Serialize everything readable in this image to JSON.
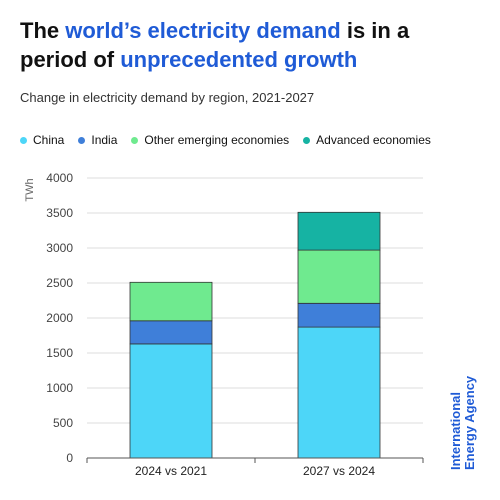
{
  "title": {
    "part1": "The ",
    "highlight1": "world’s electricity demand",
    "part2": " is in a period of ",
    "highlight2": "unprecedented growth"
  },
  "subtitle": "Change in electricity demand by region, 2021-2027",
  "brand": {
    "line1": "International",
    "line2": "Energy Agency"
  },
  "chart_data": {
    "type": "bar",
    "stacked": true,
    "categories": [
      "2024 vs 2021",
      "2027 vs 2024"
    ],
    "ylabel": "TWh",
    "ylim": [
      0,
      4000
    ],
    "yticks": [
      0,
      500,
      1000,
      1500,
      2000,
      2500,
      3000,
      3500,
      4000
    ],
    "grid": true,
    "legend_position": "top",
    "series": [
      {
        "name": "China",
        "color": "#4dd6f8",
        "values": [
          1630,
          1870
        ]
      },
      {
        "name": "India",
        "color": "#3f7fd9",
        "values": [
          330,
          340
        ]
      },
      {
        "name": "Other emerging economies",
        "color": "#6fea8f",
        "values": [
          550,
          760
        ]
      },
      {
        "name": "Advanced economies",
        "color": "#16b3a3",
        "values": [
          0,
          540
        ]
      }
    ]
  }
}
